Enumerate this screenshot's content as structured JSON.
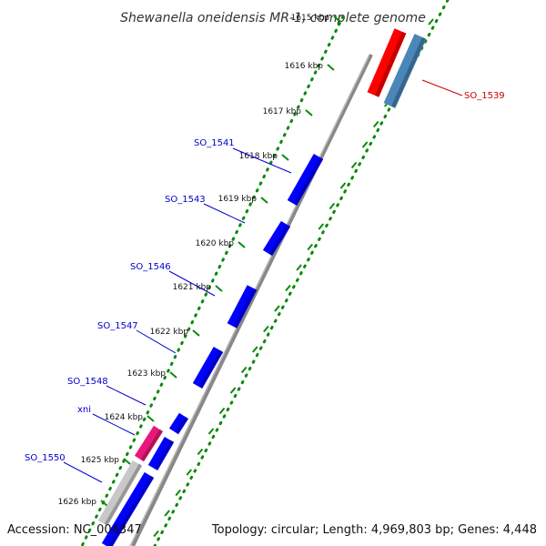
{
  "title": "Shewanella oneidensis MR-1, complete genome",
  "accession": "Accession: NC_004347",
  "summary": "Topology: circular; Length: 4,969,803 bp; Genes: 4,448",
  "ticks": [
    {
      "label": "1615 kbp",
      "faded": true
    },
    {
      "label": "1616 kbp"
    },
    {
      "label": "1617 kbp"
    },
    {
      "label": "1618 kbp"
    },
    {
      "label": "1619 kbp"
    },
    {
      "label": "1620 kbp"
    },
    {
      "label": "1621 kbp"
    },
    {
      "label": "1622 kbp"
    },
    {
      "label": "1623 kbp"
    },
    {
      "label": "1624 kbp"
    },
    {
      "label": "1625 kbp"
    },
    {
      "label": "1626 kbp"
    }
  ],
  "gene_labels": [
    {
      "name": "SO_1539",
      "color": "#cc0000"
    },
    {
      "name": "SO_1541",
      "color": "#0000cc"
    },
    {
      "name": "SO_1543",
      "color": "#0000cc"
    },
    {
      "name": "SO_1546",
      "color": "#0000cc"
    },
    {
      "name": "SO_1547",
      "color": "#0000cc"
    },
    {
      "name": "SO_1548",
      "color": "#0000cc"
    },
    {
      "name": "xni",
      "color": "#0000cc"
    },
    {
      "name": "SO_1550",
      "color": "#0000cc"
    }
  ],
  "colors": {
    "forward_gene": "#0000ff",
    "reverse_gene_red": "#ff0000",
    "reverse_gene_steelblue": "#4a86b8",
    "highlight_gene": "#e8187a",
    "gray_gene": "#c8c8c8",
    "backbone": "#888888",
    "dotted_ring": "#0a8a0a"
  }
}
